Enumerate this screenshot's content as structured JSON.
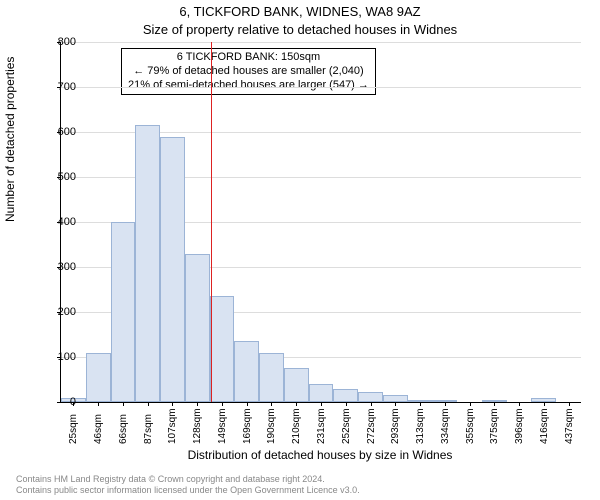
{
  "title_main": "6, TICKFORD BANK, WIDNES, WA8 9AZ",
  "title_sub": "Size of property relative to detached houses in Widnes",
  "ylabel": "Number of detached properties",
  "xlabel": "Distribution of detached houses by size in Widnes",
  "chart": {
    "type": "histogram",
    "ylim": [
      0,
      800
    ],
    "ytick_step": 100,
    "background_color": "#ffffff",
    "grid_color": "#dddddd",
    "bar_fill": "#d9e3f2",
    "bar_border": "#9cb4d6",
    "refline_color": "#dd2222",
    "refline_x": 150,
    "x_start": 25,
    "x_step": 20.6,
    "bars": [
      {
        "label": "25sqm",
        "value": 10
      },
      {
        "label": "46sqm",
        "value": 110
      },
      {
        "label": "66sqm",
        "value": 400
      },
      {
        "label": "87sqm",
        "value": 615
      },
      {
        "label": "107sqm",
        "value": 590
      },
      {
        "label": "128sqm",
        "value": 330
      },
      {
        "label": "149sqm",
        "value": 235
      },
      {
        "label": "169sqm",
        "value": 135
      },
      {
        "label": "190sqm",
        "value": 110
      },
      {
        "label": "210sqm",
        "value": 75
      },
      {
        "label": "231sqm",
        "value": 40
      },
      {
        "label": "252sqm",
        "value": 30
      },
      {
        "label": "272sqm",
        "value": 22
      },
      {
        "label": "293sqm",
        "value": 15
      },
      {
        "label": "313sqm",
        "value": 5
      },
      {
        "label": "334sqm",
        "value": 5
      },
      {
        "label": "355sqm",
        "value": 0
      },
      {
        "label": "375sqm",
        "value": 5
      },
      {
        "label": "396sqm",
        "value": 0
      },
      {
        "label": "416sqm",
        "value": 10
      },
      {
        "label": "437sqm",
        "value": 0
      }
    ]
  },
  "annotation": {
    "line1": "6 TICKFORD BANK: 150sqm",
    "line2": "← 79% of detached houses are smaller (2,040)",
    "line3": "21% of semi-detached houses are larger (547) →"
  },
  "footer_line1": "Contains HM Land Registry data © Crown copyright and database right 2024.",
  "footer_line2": "Contains public sector information licensed under the Open Government Licence v3.0."
}
